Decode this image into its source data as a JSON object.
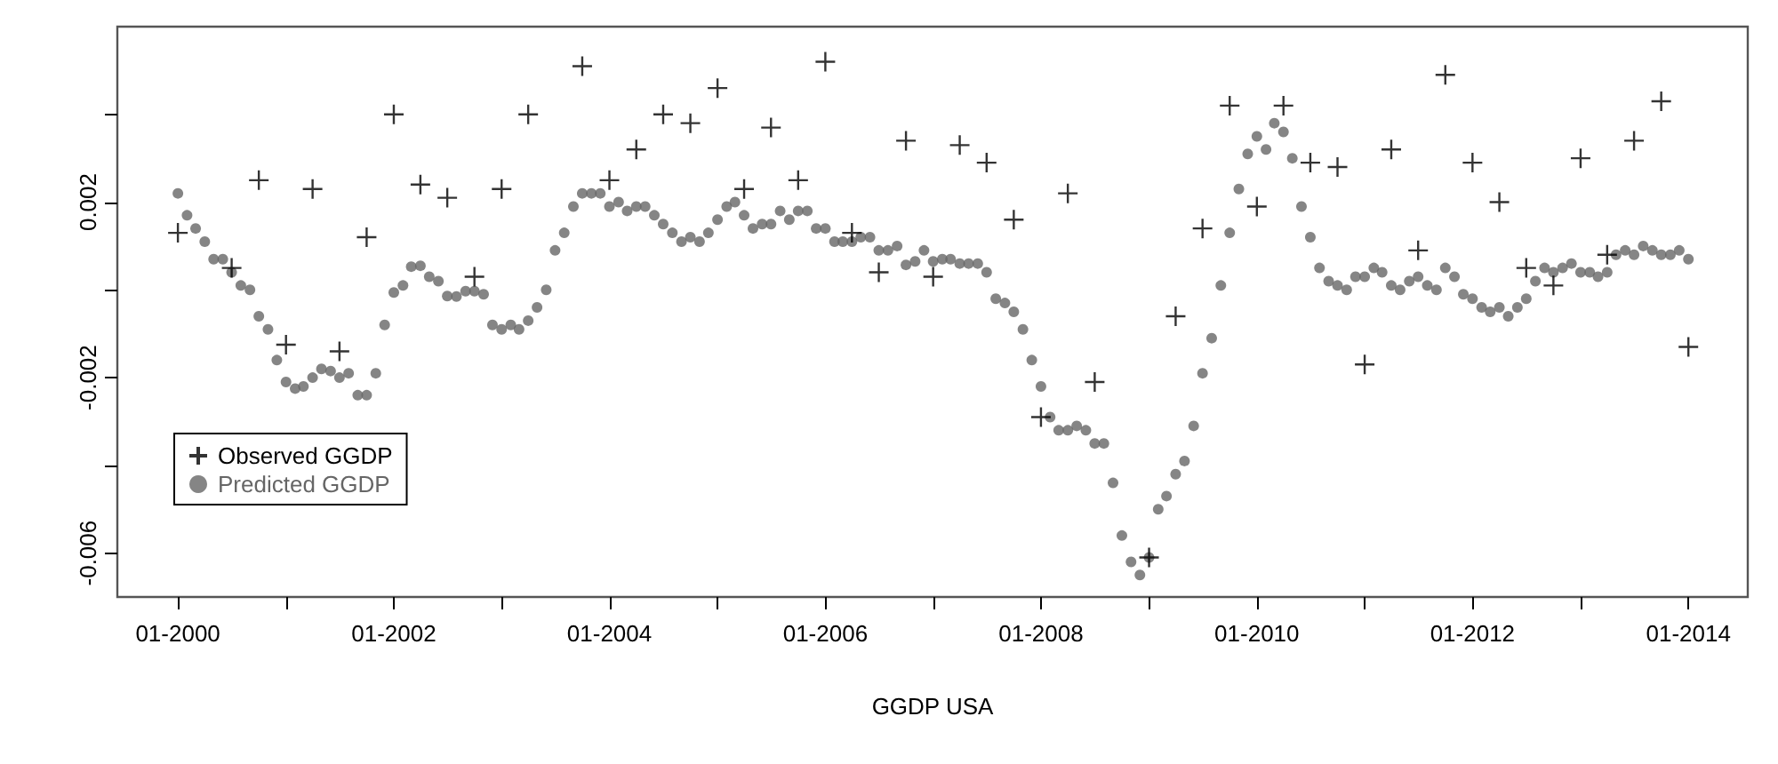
{
  "chart_data": {
    "type": "scatter",
    "xlabel": "GGDP USA",
    "xlim": [
      "1999-06-10",
      "2014-07-21"
    ],
    "xticks": [
      {
        "value": "2000-01",
        "label": "01-2000"
      },
      {
        "value": "2001-01",
        "label": null
      },
      {
        "value": "2002-01",
        "label": "01-2002"
      },
      {
        "value": "2003-01",
        "label": null
      },
      {
        "value": "2004-01",
        "label": "01-2004"
      },
      {
        "value": "2005-01",
        "label": null
      },
      {
        "value": "2006-01",
        "label": "01-2006"
      },
      {
        "value": "2007-01",
        "label": null
      },
      {
        "value": "2008-01",
        "label": "01-2008"
      },
      {
        "value": "2009-01",
        "label": null
      },
      {
        "value": "2010-01",
        "label": "01-2010"
      },
      {
        "value": "2011-01",
        "label": null
      },
      {
        "value": "2012-01",
        "label": "01-2012"
      },
      {
        "value": "2013-01",
        "label": null
      },
      {
        "value": "2014-01",
        "label": "01-2014"
      }
    ],
    "ylim": [
      -0.007,
      0.006
    ],
    "yticks": [
      -0.006,
      {
        "value": -0.004,
        "label": null
      },
      -0.002,
      {
        "value": 0,
        "label": null
      },
      0.002,
      {
        "value": 0.004,
        "label": null
      }
    ],
    "grid": false,
    "legend": "bottom left",
    "series": [
      {
        "name": "Observed GGDP",
        "color": "#000000",
        "marker": "cross",
        "x": [
          "2000-01",
          "2000-04",
          "2000-07",
          "2000-10",
          "2001-01",
          "2001-04",
          "2001-07",
          "2001-10",
          "2002-01",
          "2002-04",
          "2002-07",
          "2002-10",
          "2003-01",
          "2003-04",
          "2003-07",
          "2003-10",
          "2004-01",
          "2004-04",
          "2004-07",
          "2004-10",
          "2005-01",
          "2005-04",
          "2005-07",
          "2005-10",
          "2006-01",
          "2006-04",
          "2006-07",
          "2006-10",
          "2007-01",
          "2007-04",
          "2007-07",
          "2007-10",
          "2008-01",
          "2008-04",
          "2008-07",
          "2008-10",
          "2009-01",
          "2009-04",
          "2009-07",
          "2009-10",
          "2010-01",
          "2010-04",
          "2010-07",
          "2010-10",
          "2011-01",
          "2011-04",
          "2011-07",
          "2011-10",
          "2012-01",
          "2012-04",
          "2012-07",
          "2012-10",
          "2013-01",
          "2013-04",
          "2013-07",
          "2013-10",
          "2014-01"
        ],
        "values": [
          0.0013,
          null,
          0.0005,
          0.0025,
          -0.00125,
          0.0023,
          -0.0014,
          0.0012,
          0.004,
          0.0024,
          0.0021,
          0.0003,
          0.0023,
          0.004,
          null,
          0.0051,
          0.0025,
          0.0032,
          0.004,
          0.0038,
          0.0046,
          0.0023,
          0.0037,
          0.0025,
          0.0052,
          0.0013,
          0.0004,
          0.0034,
          0.0003,
          0.0033,
          0.0029,
          0.0016,
          -0.0029,
          0.0022,
          -0.0021,
          null,
          -0.0061,
          -0.0006,
          0.0014,
          0.0042,
          0.0019,
          0.0042,
          0.0029,
          0.0028,
          -0.0017,
          0.0032,
          0.0009,
          0.0049,
          0.0029,
          0.002,
          0.0005,
          0.0001,
          0.003,
          0.0008,
          0.0034,
          0.0043,
          -0.0013
        ]
      },
      {
        "name": "Predicted GGDP",
        "color": "#666666",
        "marker": "circle",
        "x": [
          "2000-01",
          "2000-02",
          "2000-03",
          "2000-04",
          "2000-05",
          "2000-06",
          "2000-07",
          "2000-08",
          "2000-09",
          "2000-10",
          "2000-11",
          "2000-12",
          "2001-01",
          "2001-02",
          "2001-03",
          "2001-04",
          "2001-05",
          "2001-06",
          "2001-07",
          "2001-08",
          "2001-09",
          "2001-10",
          "2001-11",
          "2001-12",
          "2002-01",
          "2002-02",
          "2002-03",
          "2002-04",
          "2002-05",
          "2002-06",
          "2002-07",
          "2002-08",
          "2002-09",
          "2002-10",
          "2002-11",
          "2002-12",
          "2003-01",
          "2003-02",
          "2003-03",
          "2003-04",
          "2003-05",
          "2003-06",
          "2003-07",
          "2003-08",
          "2003-09",
          "2003-10",
          "2003-11",
          "2003-12",
          "2004-01",
          "2004-02",
          "2004-03",
          "2004-04",
          "2004-05",
          "2004-06",
          "2004-07",
          "2004-08",
          "2004-09",
          "2004-10",
          "2004-11",
          "2004-12",
          "2005-01",
          "2005-02",
          "2005-03",
          "2005-04",
          "2005-05",
          "2005-06",
          "2005-07",
          "2005-08",
          "2005-09",
          "2005-10",
          "2005-11",
          "2005-12",
          "2006-01",
          "2006-02",
          "2006-03",
          "2006-04",
          "2006-05",
          "2006-06",
          "2006-07",
          "2006-08",
          "2006-09",
          "2006-10",
          "2006-11",
          "2006-12",
          "2007-01",
          "2007-02",
          "2007-03",
          "2007-04",
          "2007-05",
          "2007-06",
          "2007-07",
          "2007-08",
          "2007-09",
          "2007-10",
          "2007-11",
          "2007-12",
          "2008-01",
          "2008-02",
          "2008-03",
          "2008-04",
          "2008-05",
          "2008-06",
          "2008-07",
          "2008-08",
          "2008-09",
          "2008-10",
          "2008-11",
          "2008-12",
          "2009-01",
          "2009-02",
          "2009-03",
          "2009-04",
          "2009-05",
          "2009-06",
          "2009-07",
          "2009-08",
          "2009-09",
          "2009-10",
          "2009-11",
          "2009-12",
          "2010-01",
          "2010-02",
          "2010-03",
          "2010-04",
          "2010-05",
          "2010-06",
          "2010-07",
          "2010-08",
          "2010-09",
          "2010-10",
          "2010-11",
          "2010-12",
          "2011-01",
          "2011-02",
          "2011-03",
          "2011-04",
          "2011-05",
          "2011-06",
          "2011-07",
          "2011-08",
          "2011-09",
          "2011-10",
          "2011-11",
          "2011-12",
          "2012-01",
          "2012-02",
          "2012-03",
          "2012-04",
          "2012-05",
          "2012-06",
          "2012-07",
          "2012-08",
          "2012-09",
          "2012-10",
          "2012-11",
          "2012-12",
          "2013-01",
          "2013-02",
          "2013-03",
          "2013-04",
          "2013-05",
          "2013-06",
          "2013-07",
          "2013-08",
          "2013-09",
          "2013-10",
          "2013-11",
          "2013-12",
          "2014-01"
        ],
        "values": [
          0.0022,
          0.0017,
          0.0014,
          0.0011,
          0.0007,
          0.0007,
          0.0004,
          0.0001,
          0.0,
          -0.0006,
          -0.0009,
          -0.0016,
          -0.0021,
          -0.00225,
          -0.0022,
          -0.002,
          -0.0018,
          -0.00185,
          -0.002,
          -0.0019,
          -0.0024,
          -0.0024,
          -0.0019,
          -0.0008,
          -6e-05,
          0.0001,
          0.00053,
          0.00055,
          0.0003,
          0.0002,
          -0.00014,
          -0.00015,
          -3e-05,
          -3e-05,
          -0.0001,
          -0.0008,
          -0.0009,
          -0.0008,
          -0.0009,
          -0.0007,
          -0.0004,
          0.0,
          0.0009,
          0.0013,
          0.0019,
          0.0022,
          0.0022,
          0.0022,
          0.0019,
          0.002,
          0.0018,
          0.0019,
          0.0019,
          0.0017,
          0.0015,
          0.0013,
          0.0011,
          0.0012,
          0.0011,
          0.0013,
          0.0016,
          0.0019,
          0.002,
          0.0017,
          0.0014,
          0.0015,
          0.0015,
          0.0018,
          0.0016,
          0.0018,
          0.0018,
          0.0014,
          0.0014,
          0.0011,
          0.0011,
          0.0011,
          0.0012,
          0.0012,
          0.0009,
          0.0009,
          0.001,
          0.00057,
          0.00065,
          0.0009,
          0.00065,
          0.0007,
          0.0007,
          0.0006,
          0.0006,
          0.0006,
          0.0004,
          -0.0002,
          -0.0003,
          -0.0005,
          -0.0009,
          -0.0016,
          -0.0022,
          -0.0029,
          -0.0032,
          -0.0032,
          -0.0031,
          -0.0032,
          -0.0035,
          -0.0035,
          -0.0044,
          -0.0056,
          -0.0062,
          -0.0065,
          -0.0061,
          -0.005,
          -0.0047,
          -0.0042,
          -0.0039,
          -0.0031,
          -0.0019,
          -0.0011,
          0.0001,
          0.0013,
          0.0023,
          0.0031,
          0.0035,
          0.0032,
          0.0038,
          0.0036,
          0.003,
          0.0019,
          0.0012,
          0.0005,
          0.0002,
          0.0001,
          0.0,
          0.0003,
          0.0003,
          0.0005,
          0.0004,
          0.0001,
          0.0,
          0.0002,
          0.0003,
          0.0001,
          0.0,
          0.0005,
          0.0003,
          -0.0001,
          -0.0002,
          -0.0004,
          -0.0005,
          -0.0004,
          -0.0006,
          -0.0004,
          -0.0002,
          0.0002,
          0.0005,
          0.0004,
          0.0005,
          0.0006,
          0.0004,
          0.0004,
          0.0003,
          0.0004,
          0.0008,
          0.0009,
          0.0008,
          0.001,
          0.0009,
          0.0008,
          0.0008,
          0.0009,
          0.0007
        ]
      }
    ]
  }
}
